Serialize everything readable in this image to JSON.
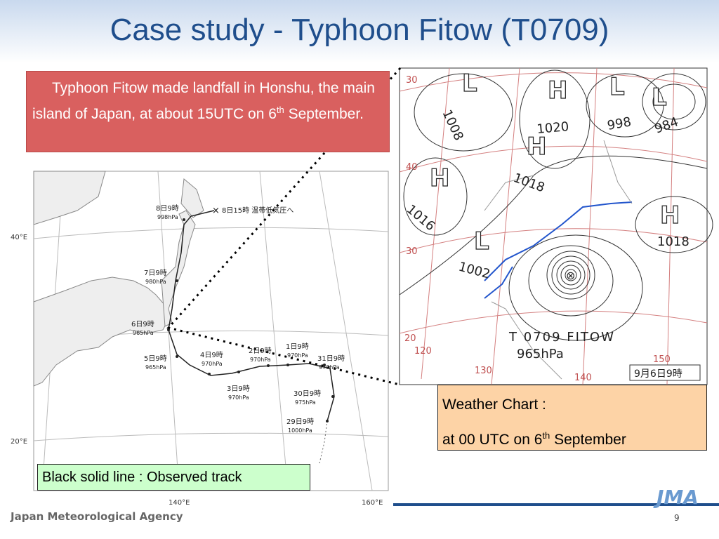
{
  "title": "Case study - Typhoon Fitow (T0709)",
  "callout": {
    "text": "Typhoon Fitow made landfall in Honshu, the main island of Japan, at about 15UTC on 6",
    "sup": "th",
    "tail": " September."
  },
  "track_map": {
    "axis_labels": [
      "40°E",
      "20°E",
      "140°E",
      "160°E"
    ],
    "extratropical": "8日15時 温帯低気圧へ",
    "points": [
      {
        "time": "8日9時",
        "pressure": "998hPa"
      },
      {
        "time": "7日9時",
        "pressure": "980hPa"
      },
      {
        "time": "6日9時",
        "pressure": "965hPa"
      },
      {
        "time": "5日9時",
        "pressure": "965hPa"
      },
      {
        "time": "4日9時",
        "pressure": "970hPa"
      },
      {
        "time": "3日9時",
        "pressure": "970hPa"
      },
      {
        "time": "2日9時",
        "pressure": "970hPa"
      },
      {
        "time": "1日9時",
        "pressure": "970hPa"
      },
      {
        "time": "31日9時",
        "pressure": "970hPa"
      },
      {
        "time": "30日9時",
        "pressure": "975hPa"
      },
      {
        "time": "29日9時",
        "pressure": "1000hPa"
      }
    ]
  },
  "weather_chart": {
    "systems": [
      {
        "symbol": "L",
        "pressure": "1008"
      },
      {
        "symbol": "H",
        "pressure": "1020"
      },
      {
        "symbol": "L",
        "pressure": "998"
      },
      {
        "symbol": "L",
        "pressure": "984"
      },
      {
        "symbol": "H",
        "pressure": "1018"
      },
      {
        "symbol": "H",
        "pressure": "1016"
      },
      {
        "symbol": "L",
        "pressure": "1002"
      },
      {
        "symbol": "H",
        "pressure": "1018"
      }
    ],
    "grid_labels": [
      "30",
      "40",
      "30",
      "20",
      "120",
      "130",
      "140",
      "150"
    ],
    "typhoon_name": "T 0709 FITOW",
    "typhoon_pressure": "965hPa",
    "stamp": "9月6日9時"
  },
  "note": {
    "line1": "Weather Chart  :",
    "line2": "at 00 UTC on 6",
    "sup": "th",
    "tail": " September"
  },
  "legend": "Black solid line : Observed track",
  "footer": {
    "agency": "Japan Meteorological Agency",
    "logo": "JMA",
    "page": "9"
  }
}
